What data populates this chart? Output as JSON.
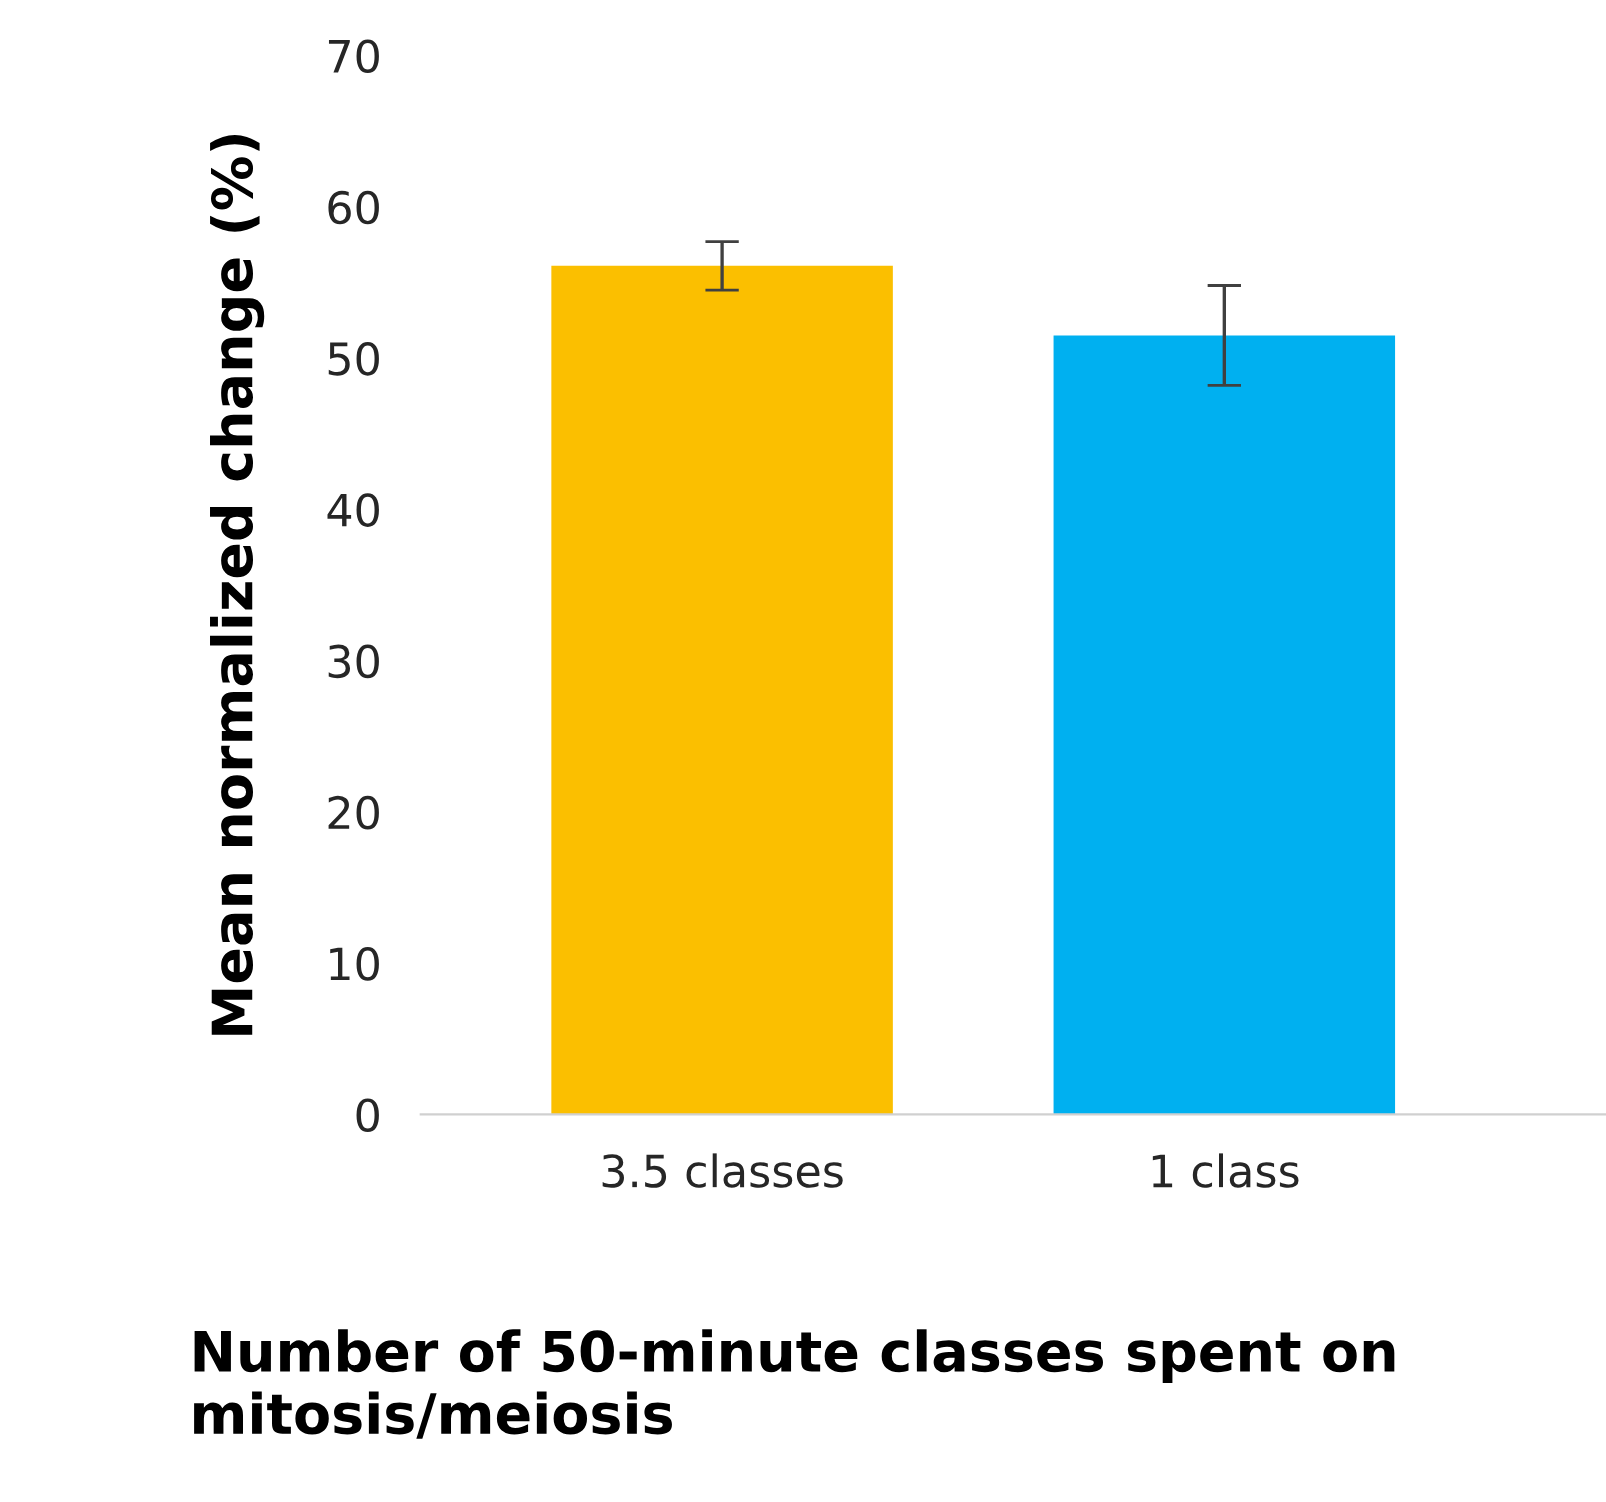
{
  "chart_data": {
    "type": "bar",
    "xlabel": "Number of 50-minute classes spent on mitosis/meiosis",
    "ylabel": "Mean normalized change (%)",
    "categories": [
      "3.5 classes",
      "1 class"
    ],
    "values": [
      56.1,
      51.5
    ],
    "errors": [
      1.6,
      3.3
    ],
    "colors": [
      "#fbbf00",
      "#00b0f0"
    ],
    "ylim": [
      0,
      70
    ],
    "yticks": [
      0,
      10,
      20,
      30,
      40,
      50,
      60,
      70
    ],
    "grid": false,
    "legend": false
  }
}
